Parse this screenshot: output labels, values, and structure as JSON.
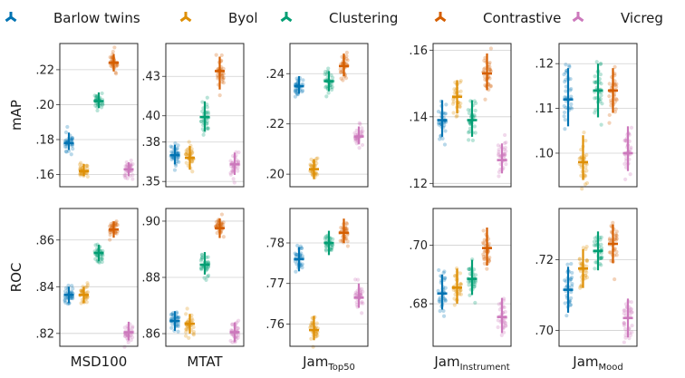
{
  "chart_data": {
    "type": "scatter",
    "legend": [
      {
        "key": "barlow",
        "label": "Barlow twins",
        "color": "#0173b2"
      },
      {
        "key": "byol",
        "label": "Byol",
        "color": "#de8f05"
      },
      {
        "key": "clustering",
        "label": "Clustering",
        "color": "#029e73"
      },
      {
        "key": "contrastive",
        "label": "Contrastive",
        "color": "#d55e00"
      },
      {
        "key": "vicreg",
        "label": "Vicreg",
        "color": "#cc78bc"
      }
    ],
    "row_labels": [
      "mAP",
      "ROC"
    ],
    "columns": [
      {
        "label": "MSD100",
        "sub": ""
      },
      {
        "label": "MTAT",
        "sub": ""
      },
      {
        "label": "Jam",
        "sub": "Top50"
      },
      {
        "label": "Jam",
        "sub": "Instrument"
      },
      {
        "label": "Jam",
        "sub": "Mood"
      }
    ],
    "panels": [
      {
        "row": 0,
        "col": 0,
        "ylim": [
          0.153,
          0.235
        ],
        "ticks": [
          0.16,
          0.18,
          0.2,
          0.22
        ],
        "tick_labels": [
          ".16",
          ".18",
          ".20",
          ".22"
        ],
        "series": {
          "barlow": {
            "mean": 0.178,
            "lo": 0.174,
            "hi": 0.184
          },
          "byol": {
            "mean": 0.162,
            "lo": 0.159,
            "hi": 0.166
          },
          "clustering": {
            "mean": 0.202,
            "lo": 0.198,
            "hi": 0.207
          },
          "contrastive": {
            "mean": 0.224,
            "lo": 0.219,
            "hi": 0.229
          },
          "vicreg": {
            "mean": 0.163,
            "lo": 0.159,
            "hi": 0.167
          }
        }
      },
      {
        "row": 0,
        "col": 1,
        "ylim": [
          0.346,
          0.455
        ],
        "ticks": [
          0.35,
          0.38,
          0.4,
          0.43
        ],
        "tick_labels": [
          ".35",
          ".38",
          ".40",
          ".43"
        ],
        "series": {
          "barlow": {
            "mean": 0.37,
            "lo": 0.363,
            "hi": 0.378
          },
          "byol": {
            "mean": 0.368,
            "lo": 0.359,
            "hi": 0.377
          },
          "clustering": {
            "mean": 0.399,
            "lo": 0.388,
            "hi": 0.411
          },
          "contrastive": {
            "mean": 0.434,
            "lo": 0.42,
            "hi": 0.445
          },
          "vicreg": {
            "mean": 0.363,
            "lo": 0.355,
            "hi": 0.372
          }
        }
      },
      {
        "row": 0,
        "col": 2,
        "ylim": [
          0.195,
          0.252
        ],
        "ticks": [
          0.2,
          0.22,
          0.24
        ],
        "tick_labels": [
          ".20",
          ".22",
          ".24"
        ],
        "series": {
          "barlow": {
            "mean": 0.235,
            "lo": 0.232,
            "hi": 0.239
          },
          "byol": {
            "mean": 0.202,
            "lo": 0.198,
            "hi": 0.206
          },
          "clustering": {
            "mean": 0.237,
            "lo": 0.233,
            "hi": 0.241
          },
          "contrastive": {
            "mean": 0.243,
            "lo": 0.239,
            "hi": 0.248
          },
          "vicreg": {
            "mean": 0.215,
            "lo": 0.212,
            "hi": 0.219
          }
        }
      },
      {
        "row": 0,
        "col": 3,
        "ylim": [
          0.119,
          0.162
        ],
        "ticks": [
          0.12,
          0.14,
          0.16
        ],
        "tick_labels": [
          ".12",
          ".14",
          ".16"
        ],
        "series": {
          "barlow": {
            "mean": 0.139,
            "lo": 0.134,
            "hi": 0.145
          },
          "byol": {
            "mean": 0.146,
            "lo": 0.141,
            "hi": 0.151
          },
          "clustering": {
            "mean": 0.139,
            "lo": 0.134,
            "hi": 0.145
          },
          "contrastive": {
            "mean": 0.153,
            "lo": 0.148,
            "hi": 0.159
          },
          "vicreg": {
            "mean": 0.127,
            "lo": 0.123,
            "hi": 0.132
          }
        }
      },
      {
        "row": 0,
        "col": 4,
        "ylim": [
          0.0925,
          0.1245
        ],
        "ticks": [
          0.1,
          0.11,
          0.12
        ],
        "tick_labels": [
          ".10",
          ".11",
          ".12"
        ],
        "series": {
          "barlow": {
            "mean": 0.112,
            "lo": 0.106,
            "hi": 0.119
          },
          "byol": {
            "mean": 0.098,
            "lo": 0.094,
            "hi": 0.104
          },
          "clustering": {
            "mean": 0.114,
            "lo": 0.108,
            "hi": 0.12
          },
          "contrastive": {
            "mean": 0.114,
            "lo": 0.109,
            "hi": 0.119
          },
          "vicreg": {
            "mean": 0.1,
            "lo": 0.096,
            "hi": 0.106
          }
        }
      },
      {
        "row": 1,
        "col": 0,
        "ylim": [
          0.8145,
          0.8735
        ],
        "ticks": [
          0.82,
          0.84,
          0.86
        ],
        "tick_labels": [
          ".82",
          ".84",
          ".86"
        ],
        "series": {
          "barlow": {
            "mean": 0.8365,
            "lo": 0.833,
            "hi": 0.84
          },
          "byol": {
            "mean": 0.8365,
            "lo": 0.833,
            "hi": 0.84
          },
          "clustering": {
            "mean": 0.8545,
            "lo": 0.851,
            "hi": 0.858
          },
          "contrastive": {
            "mean": 0.8645,
            "lo": 0.861,
            "hi": 0.868
          },
          "vicreg": {
            "mean": 0.8205,
            "lo": 0.817,
            "hi": 0.825
          }
        }
      },
      {
        "row": 1,
        "col": 1,
        "ylim": [
          0.8555,
          0.9045
        ],
        "ticks": [
          0.86,
          0.88,
          0.9
        ],
        "tick_labels": [
          ".86",
          ".88",
          ".90"
        ],
        "series": {
          "barlow": {
            "mean": 0.8645,
            "lo": 0.861,
            "hi": 0.868
          },
          "byol": {
            "mean": 0.8635,
            "lo": 0.86,
            "hi": 0.867
          },
          "clustering": {
            "mean": 0.8845,
            "lo": 0.881,
            "hi": 0.889
          },
          "contrastive": {
            "mean": 0.8975,
            "lo": 0.894,
            "hi": 0.901
          },
          "vicreg": {
            "mean": 0.8605,
            "lo": 0.857,
            "hi": 0.864
          }
        }
      },
      {
        "row": 1,
        "col": 2,
        "ylim": [
          0.7545,
          0.7885
        ],
        "ticks": [
          0.76,
          0.77,
          0.78
        ],
        "tick_labels": [
          ".76",
          ".77",
          ".78"
        ],
        "series": {
          "barlow": {
            "mean": 0.776,
            "lo": 0.773,
            "hi": 0.779
          },
          "byol": {
            "mean": 0.7585,
            "lo": 0.756,
            "hi": 0.762
          },
          "clustering": {
            "mean": 0.78,
            "lo": 0.777,
            "hi": 0.783
          },
          "contrastive": {
            "mean": 0.7825,
            "lo": 0.78,
            "hi": 0.786
          },
          "vicreg": {
            "mean": 0.7665,
            "lo": 0.764,
            "hi": 0.77
          }
        }
      },
      {
        "row": 1,
        "col": 3,
        "ylim": [
          0.6655,
          0.7125
        ],
        "ticks": [
          0.68,
          0.7
        ],
        "tick_labels": [
          ".68",
          ".70"
        ],
        "series": {
          "barlow": {
            "mean": 0.6835,
            "lo": 0.678,
            "hi": 0.69
          },
          "byol": {
            "mean": 0.6855,
            "lo": 0.68,
            "hi": 0.692
          },
          "clustering": {
            "mean": 0.6885,
            "lo": 0.683,
            "hi": 0.695
          },
          "contrastive": {
            "mean": 0.699,
            "lo": 0.693,
            "hi": 0.706
          },
          "vicreg": {
            "mean": 0.6755,
            "lo": 0.67,
            "hi": 0.682
          }
        }
      },
      {
        "row": 1,
        "col": 4,
        "ylim": [
          0.6955,
          0.7345
        ],
        "ticks": [
          0.7,
          0.72
        ],
        "tick_labels": [
          ".70",
          ".72"
        ],
        "series": {
          "barlow": {
            "mean": 0.7115,
            "lo": 0.705,
            "hi": 0.718
          },
          "byol": {
            "mean": 0.7175,
            "lo": 0.712,
            "hi": 0.723
          },
          "clustering": {
            "mean": 0.7225,
            "lo": 0.717,
            "hi": 0.728
          },
          "contrastive": {
            "mean": 0.7245,
            "lo": 0.719,
            "hi": 0.73
          },
          "vicreg": {
            "mean": 0.7035,
            "lo": 0.698,
            "hi": 0.709
          }
        }
      }
    ]
  }
}
